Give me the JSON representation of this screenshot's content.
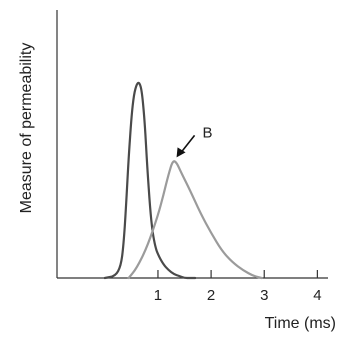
{
  "colors": {
    "axis": "#333333",
    "series_a": "#4a4a4a",
    "series_b": "#9b9b9b"
  },
  "chart_data": {
    "type": "line",
    "xlabel": "Time (ms)",
    "ylabel": "Measure of permeability",
    "xlim": [
      -0.9,
      4.2
    ],
    "ylim": [
      0,
      1
    ],
    "xticks": [
      1,
      2,
      3,
      4
    ],
    "y_tick_labels": false,
    "grid": false,
    "legend": "none",
    "series": [
      {
        "x": [
          0.0,
          0.2,
          0.3,
          0.35,
          0.4,
          0.45,
          0.5,
          0.55,
          0.6,
          0.65,
          0.7,
          0.75,
          0.8,
          0.85,
          0.9,
          0.95,
          1.0,
          1.1,
          1.2,
          1.3,
          1.4,
          1.5,
          1.6,
          1.7
        ],
        "y": [
          0.0,
          0.01,
          0.06,
          0.16,
          0.37,
          0.62,
          0.82,
          0.94,
          0.99,
          1.0,
          0.95,
          0.8,
          0.56,
          0.36,
          0.23,
          0.16,
          0.12,
          0.07,
          0.04,
          0.02,
          0.01,
          0.0,
          0.0,
          0.0
        ]
      },
      {
        "x": [
          0.45,
          0.6,
          0.8,
          1.0,
          1.1,
          1.2,
          1.28,
          1.35,
          1.45,
          1.6,
          1.8,
          2.0,
          2.2,
          2.4,
          2.6,
          2.8,
          2.95
        ],
        "y": [
          0.0,
          0.05,
          0.16,
          0.32,
          0.42,
          0.53,
          0.6,
          0.59,
          0.53,
          0.45,
          0.33,
          0.23,
          0.14,
          0.08,
          0.04,
          0.01,
          0.0
        ]
      }
    ],
    "annotations": [
      {
        "text": "B",
        "target_x": 1.35,
        "target_y": 0.6
      }
    ]
  }
}
